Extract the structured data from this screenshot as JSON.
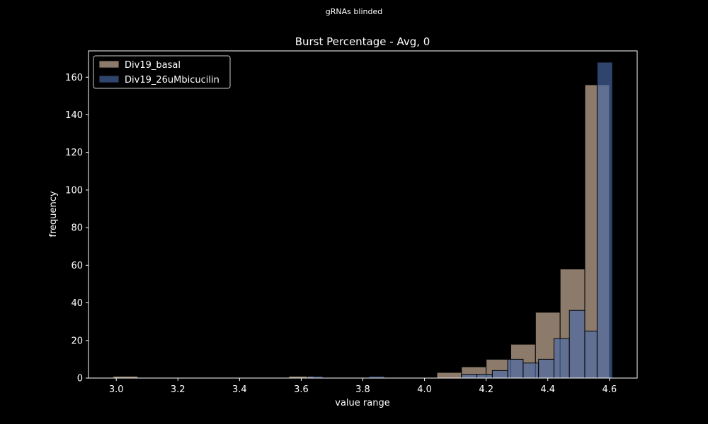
{
  "figure": {
    "suptitle": "gRNAs blinded",
    "background": "#000000",
    "axes_color": "#ffffff"
  },
  "chart_data": {
    "type": "histogram",
    "title": "Burst Percentage - Avg, 0",
    "xlabel": "value range",
    "ylabel": "frequency",
    "xlim": [
      2.91,
      4.69
    ],
    "ylim": [
      0,
      174
    ],
    "xticks": [
      3.0,
      3.2,
      3.4,
      3.6,
      3.8,
      4.0,
      4.2,
      4.4,
      4.6
    ],
    "xtick_labels": [
      "3.0",
      "3.2",
      "3.4",
      "3.6",
      "3.8",
      "4.0",
      "4.2",
      "4.4",
      "4.6"
    ],
    "yticks": [
      0,
      20,
      40,
      60,
      80,
      100,
      120,
      140,
      160
    ],
    "ytick_labels": [
      "0",
      "20",
      "40",
      "60",
      "80",
      "100",
      "120",
      "140",
      "160"
    ],
    "legend_position": "top-left",
    "series": [
      {
        "name": "Div19_basal",
        "color": "#8c7b6b",
        "alpha": 1.0,
        "bins": [
          {
            "x0": 2.99,
            "x1": 3.07,
            "count": 1
          },
          {
            "x0": 3.56,
            "x1": 3.64,
            "count": 1
          },
          {
            "x0": 4.04,
            "x1": 4.12,
            "count": 3
          },
          {
            "x0": 4.12,
            "x1": 4.2,
            "count": 6
          },
          {
            "x0": 4.2,
            "x1": 4.28,
            "count": 10
          },
          {
            "x0": 4.28,
            "x1": 4.36,
            "count": 18
          },
          {
            "x0": 4.36,
            "x1": 4.44,
            "count": 35
          },
          {
            "x0": 4.44,
            "x1": 4.52,
            "count": 58
          },
          {
            "x0": 4.52,
            "x1": 4.6,
            "count": 156
          }
        ]
      },
      {
        "name": "Div19_26uMbicucilin",
        "color": "#4a6aa8",
        "alpha": 0.65,
        "bins": [
          {
            "x0": 3.62,
            "x1": 3.67,
            "count": 1
          },
          {
            "x0": 3.82,
            "x1": 3.87,
            "count": 1
          },
          {
            "x0": 4.12,
            "x1": 4.17,
            "count": 2
          },
          {
            "x0": 4.17,
            "x1": 4.22,
            "count": 2
          },
          {
            "x0": 4.22,
            "x1": 4.27,
            "count": 4
          },
          {
            "x0": 4.27,
            "x1": 4.32,
            "count": 10
          },
          {
            "x0": 4.32,
            "x1": 4.37,
            "count": 8
          },
          {
            "x0": 4.37,
            "x1": 4.42,
            "count": 10
          },
          {
            "x0": 4.42,
            "x1": 4.47,
            "count": 21
          },
          {
            "x0": 4.47,
            "x1": 4.52,
            "count": 36
          },
          {
            "x0": 4.52,
            "x1": 4.56,
            "count": 25
          },
          {
            "x0": 4.56,
            "x1": 4.61,
            "count": 168
          }
        ]
      }
    ]
  }
}
